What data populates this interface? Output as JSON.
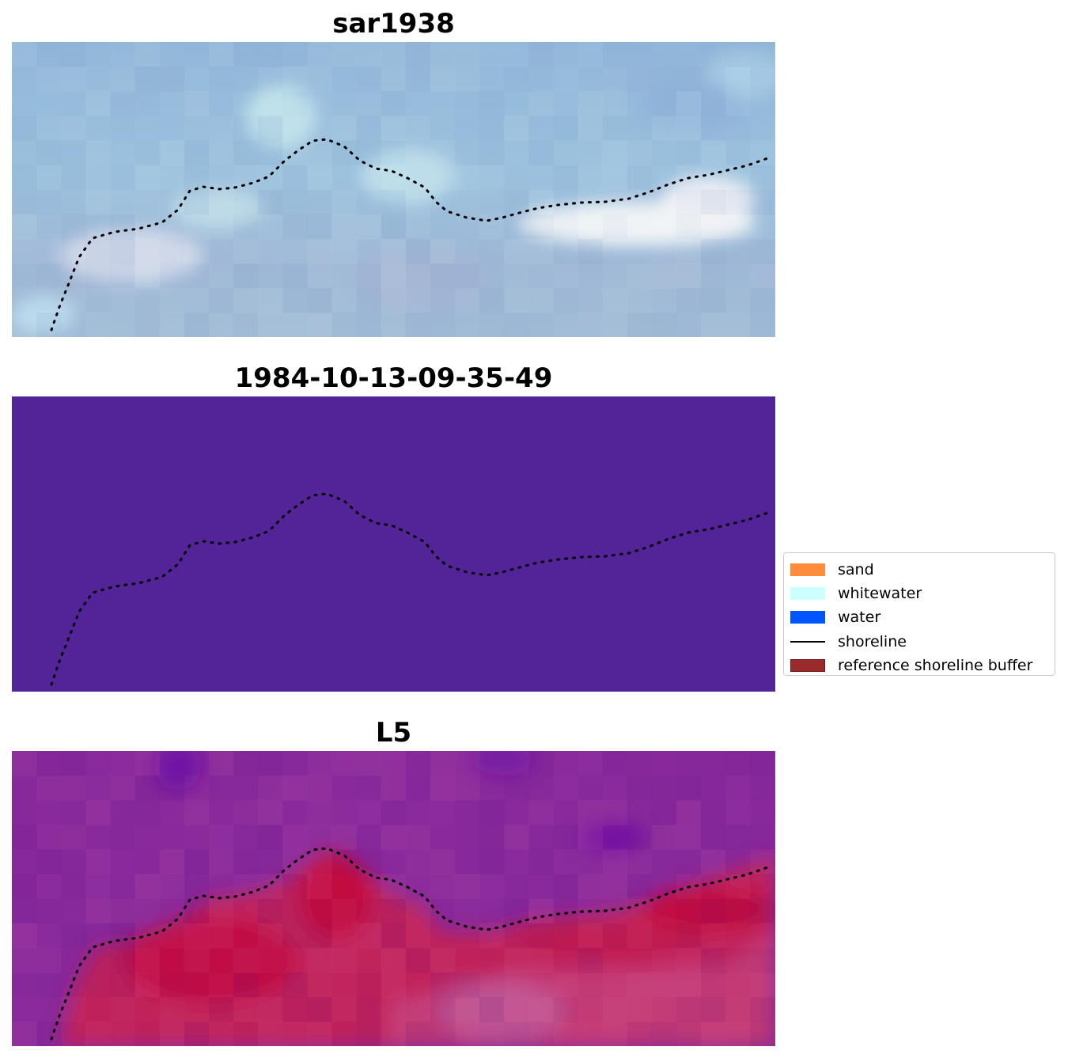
{
  "panels": [
    {
      "title": "sar1938",
      "image": "rgb-satellite-image"
    },
    {
      "title": "1984-10-13-09-35-49",
      "image": "classified-image"
    },
    {
      "title": "L5",
      "image": "index-image"
    }
  ],
  "legend": {
    "items": [
      {
        "label": "sand",
        "color": "#ff8c3b",
        "kind": "patch"
      },
      {
        "label": "whitewater",
        "color": "#ccffff",
        "kind": "patch"
      },
      {
        "label": "water",
        "color": "#0055ff",
        "kind": "patch"
      },
      {
        "label": "shoreline",
        "color": "#000000",
        "kind": "line"
      },
      {
        "label": "reference shoreline buffer",
        "color": "#9b2a2a",
        "kind": "patch"
      }
    ]
  },
  "colors": {
    "classified_background": "#532497",
    "shoreline": "#000000"
  }
}
